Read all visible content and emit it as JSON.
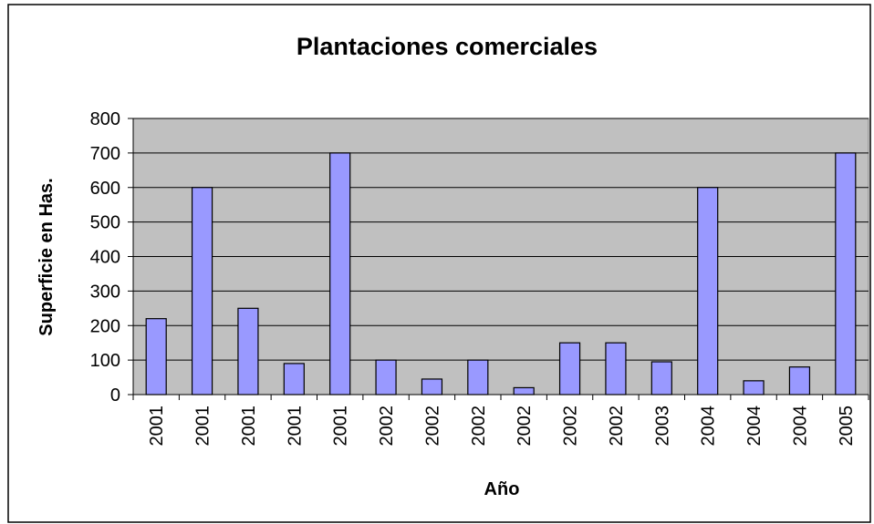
{
  "chart_data": {
    "type": "bar",
    "title": "Plantaciones comerciales",
    "x_label": "Año",
    "y_label": "Superficie en Has.",
    "categories": [
      "2001",
      "2001",
      "2001",
      "2001",
      "2001",
      "2002",
      "2002",
      "2002",
      "2002",
      "2002",
      "2002",
      "2003",
      "2004",
      "2004",
      "2004",
      "2005"
    ],
    "values": [
      220,
      600,
      250,
      90,
      700,
      100,
      45,
      100,
      20,
      150,
      150,
      95,
      600,
      40,
      80,
      700
    ],
    "color": "#9999ff",
    "ylim": [
      0,
      800
    ],
    "yticks": [
      0,
      100,
      200,
      300,
      400,
      500,
      600,
      700,
      800
    ],
    "grid": true
  }
}
